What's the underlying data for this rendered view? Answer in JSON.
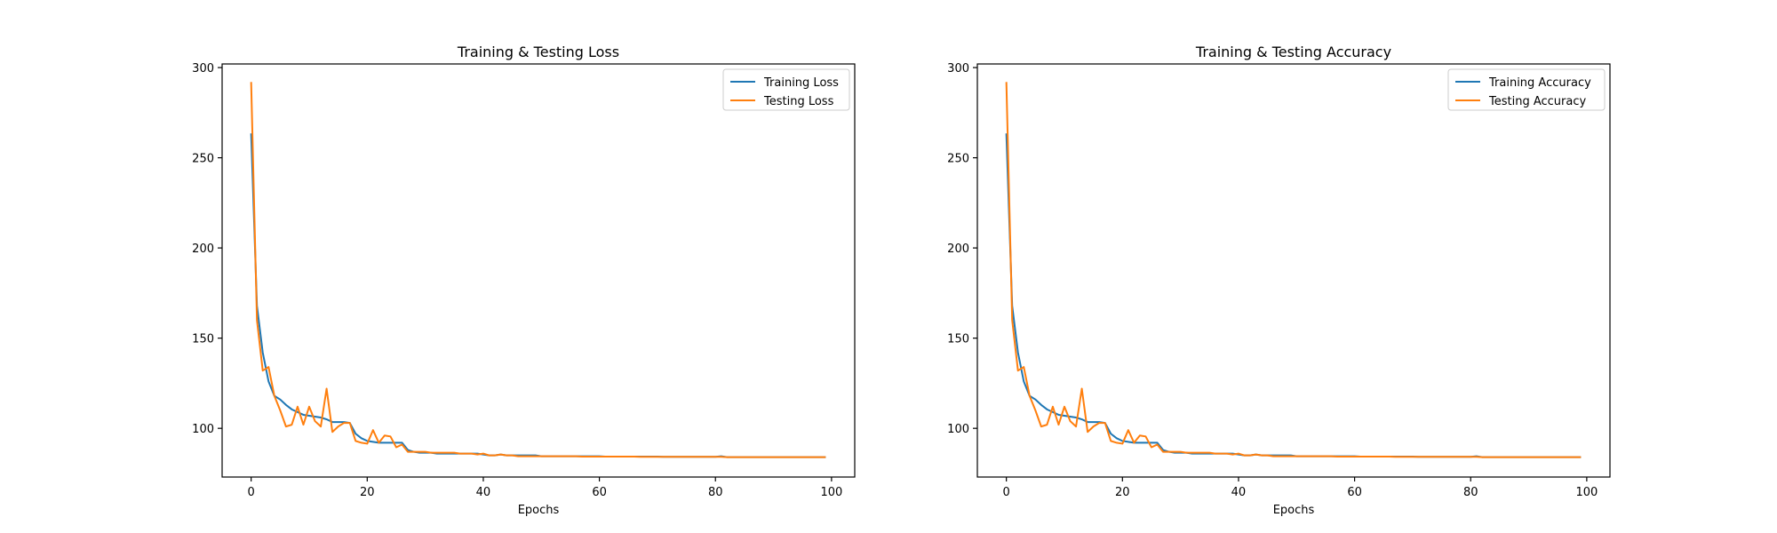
{
  "figure": {
    "background": "#ffffff"
  },
  "chart_data": [
    {
      "type": "line",
      "title": "Training & Testing Loss",
      "xlabel": "Epochs",
      "ylabel": "",
      "xlim": [
        -5,
        104
      ],
      "ylim": [
        73,
        302
      ],
      "xticks": [
        0,
        20,
        40,
        60,
        80,
        100
      ],
      "yticks": [
        100,
        150,
        200,
        250,
        300
      ],
      "grid": false,
      "legend_position": "top-right",
      "series": [
        {
          "name": "Training Loss",
          "color": "#1f77b4",
          "values": [
            263.5,
            168,
            142,
            126,
            118,
            116,
            113,
            110.5,
            109,
            107.5,
            107,
            106.5,
            106,
            105,
            103.5,
            103.5,
            103.5,
            103,
            97,
            94.5,
            93,
            92.5,
            92,
            92,
            92,
            92,
            92,
            88,
            87,
            86.5,
            86.5,
            86.5,
            86,
            86,
            86,
            86,
            86,
            86,
            86,
            86,
            85.5,
            85,
            85,
            85.5,
            85,
            85,
            85,
            85,
            85,
            85,
            84.5,
            84.5,
            84.5,
            84.5,
            84.5,
            84.5,
            84.5,
            84.5,
            84.5,
            84.5,
            84.5,
            84.3,
            84.3,
            84.3,
            84.3,
            84.3,
            84.3,
            84.3,
            84.3,
            84.3,
            84.3,
            84.2,
            84.2,
            84.2,
            84.2,
            84.2,
            84.2,
            84.2,
            84.2,
            84.2,
            84.2,
            84.5,
            84,
            84,
            84,
            84,
            84,
            84,
            84,
            84,
            84,
            84,
            84,
            84,
            84,
            84,
            84,
            84,
            84,
            84
          ]
        },
        {
          "name": "Testing Loss",
          "color": "#ff7f0e",
          "values": [
            292,
            160,
            132,
            134,
            118,
            110,
            101,
            102,
            112,
            102,
            112,
            104,
            101,
            122,
            98,
            101,
            103,
            103,
            93,
            92,
            91.5,
            99,
            92,
            96,
            95.5,
            89.5,
            91,
            87,
            87,
            87,
            87,
            86.5,
            86.5,
            86.5,
            86.5,
            86.5,
            86,
            86,
            86,
            85.5,
            86,
            85,
            85,
            85.5,
            85,
            85,
            84.5,
            84.5,
            84.5,
            84.5,
            84.5,
            84.5,
            84.5,
            84.5,
            84.5,
            84.5,
            84.5,
            84.3,
            84.3,
            84.3,
            84.3,
            84.3,
            84.3,
            84.3,
            84.3,
            84.3,
            84.3,
            84.2,
            84.2,
            84.2,
            84.2,
            84.2,
            84.2,
            84.2,
            84.2,
            84.2,
            84.2,
            84.2,
            84.2,
            84.2,
            84.2,
            84.2,
            84,
            84,
            84,
            84,
            84,
            84,
            84,
            84,
            84,
            84,
            84,
            84,
            84,
            84,
            84,
            84,
            84,
            84
          ]
        }
      ]
    },
    {
      "type": "line",
      "title": "Training & Testing Accuracy",
      "xlabel": "Epochs",
      "ylabel": "",
      "xlim": [
        -5,
        104
      ],
      "ylim": [
        73,
        302
      ],
      "xticks": [
        0,
        20,
        40,
        60,
        80,
        100
      ],
      "yticks": [
        100,
        150,
        200,
        250,
        300
      ],
      "grid": false,
      "legend_position": "top-right",
      "series": [
        {
          "name": "Training Accuracy",
          "color": "#1f77b4",
          "values": [
            263.5,
            168,
            142,
            126,
            118,
            116,
            113,
            110.5,
            109,
            107.5,
            107,
            106.5,
            106,
            105,
            103.5,
            103.5,
            103.5,
            103,
            97,
            94.5,
            93,
            92.5,
            92,
            92,
            92,
            92,
            92,
            88,
            87,
            86.5,
            86.5,
            86.5,
            86,
            86,
            86,
            86,
            86,
            86,
            86,
            86,
            85.5,
            85,
            85,
            85.5,
            85,
            85,
            85,
            85,
            85,
            85,
            84.5,
            84.5,
            84.5,
            84.5,
            84.5,
            84.5,
            84.5,
            84.5,
            84.5,
            84.5,
            84.5,
            84.3,
            84.3,
            84.3,
            84.3,
            84.3,
            84.3,
            84.3,
            84.3,
            84.3,
            84.3,
            84.2,
            84.2,
            84.2,
            84.2,
            84.2,
            84.2,
            84.2,
            84.2,
            84.2,
            84.2,
            84.5,
            84,
            84,
            84,
            84,
            84,
            84,
            84,
            84,
            84,
            84,
            84,
            84,
            84,
            84,
            84,
            84,
            84,
            84
          ]
        },
        {
          "name": "Testing Accuracy",
          "color": "#ff7f0e",
          "values": [
            292,
            160,
            132,
            134,
            118,
            110,
            101,
            102,
            112,
            102,
            112,
            104,
            101,
            122,
            98,
            101,
            103,
            103,
            93,
            92,
            91.5,
            99,
            92,
            96,
            95.5,
            89.5,
            91,
            87,
            87,
            87,
            87,
            86.5,
            86.5,
            86.5,
            86.5,
            86.5,
            86,
            86,
            86,
            85.5,
            86,
            85,
            85,
            85.5,
            85,
            85,
            84.5,
            84.5,
            84.5,
            84.5,
            84.5,
            84.5,
            84.5,
            84.5,
            84.5,
            84.5,
            84.5,
            84.3,
            84.3,
            84.3,
            84.3,
            84.3,
            84.3,
            84.3,
            84.3,
            84.3,
            84.3,
            84.2,
            84.2,
            84.2,
            84.2,
            84.2,
            84.2,
            84.2,
            84.2,
            84.2,
            84.2,
            84.2,
            84.2,
            84.2,
            84.2,
            84.2,
            84,
            84,
            84,
            84,
            84,
            84,
            84,
            84,
            84,
            84,
            84,
            84,
            84,
            84,
            84,
            84,
            84,
            84
          ]
        }
      ]
    }
  ]
}
